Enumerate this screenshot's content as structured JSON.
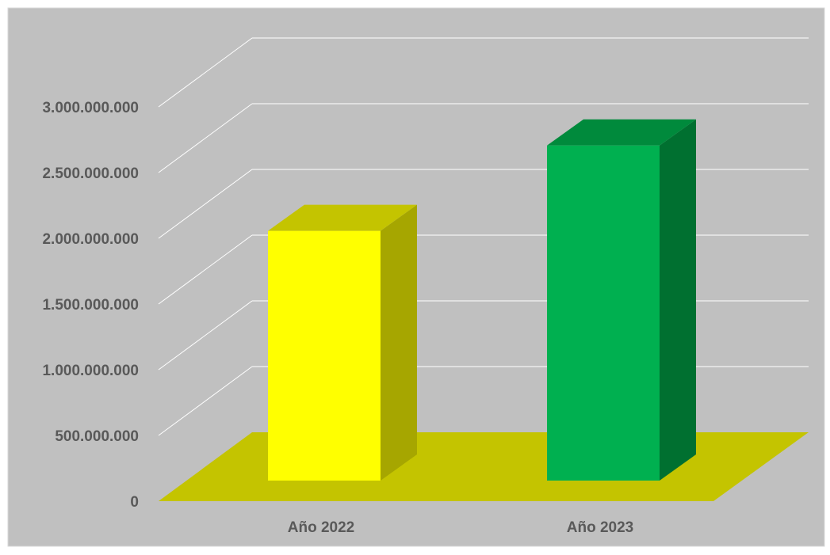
{
  "chart_data": {
    "type": "bar",
    "title": "",
    "xlabel": "",
    "ylabel": "",
    "categories": [
      "Año 2022",
      "Año 2023"
    ],
    "values": [
      1900000000,
      2550000000
    ],
    "ylim": [
      0,
      3000000000
    ],
    "y_ticks": [
      {
        "value": 0,
        "label": "0"
      },
      {
        "value": 500000000,
        "label": "500.000.000"
      },
      {
        "value": 1000000000,
        "label": "1.000.000.000"
      },
      {
        "value": 1500000000,
        "label": "1.500.000.000"
      },
      {
        "value": 2000000000,
        "label": "2.000.000.000"
      },
      {
        "value": 2500000000,
        "label": "2.500.000.000"
      },
      {
        "value": 3000000000,
        "label": "3.000.000.000"
      }
    ],
    "grid": true,
    "legend": "none",
    "style": "3d-column",
    "colors": {
      "background": "#c0c0c0",
      "floor": "#c4c400",
      "grid": "#ffffff",
      "tick_text": "#595959",
      "bars": [
        {
          "front": "#ffff00",
          "side": "#a6a600",
          "top": "#c4c400"
        },
        {
          "front": "#00b050",
          "side": "#007030",
          "top": "#008a3c"
        }
      ]
    }
  }
}
